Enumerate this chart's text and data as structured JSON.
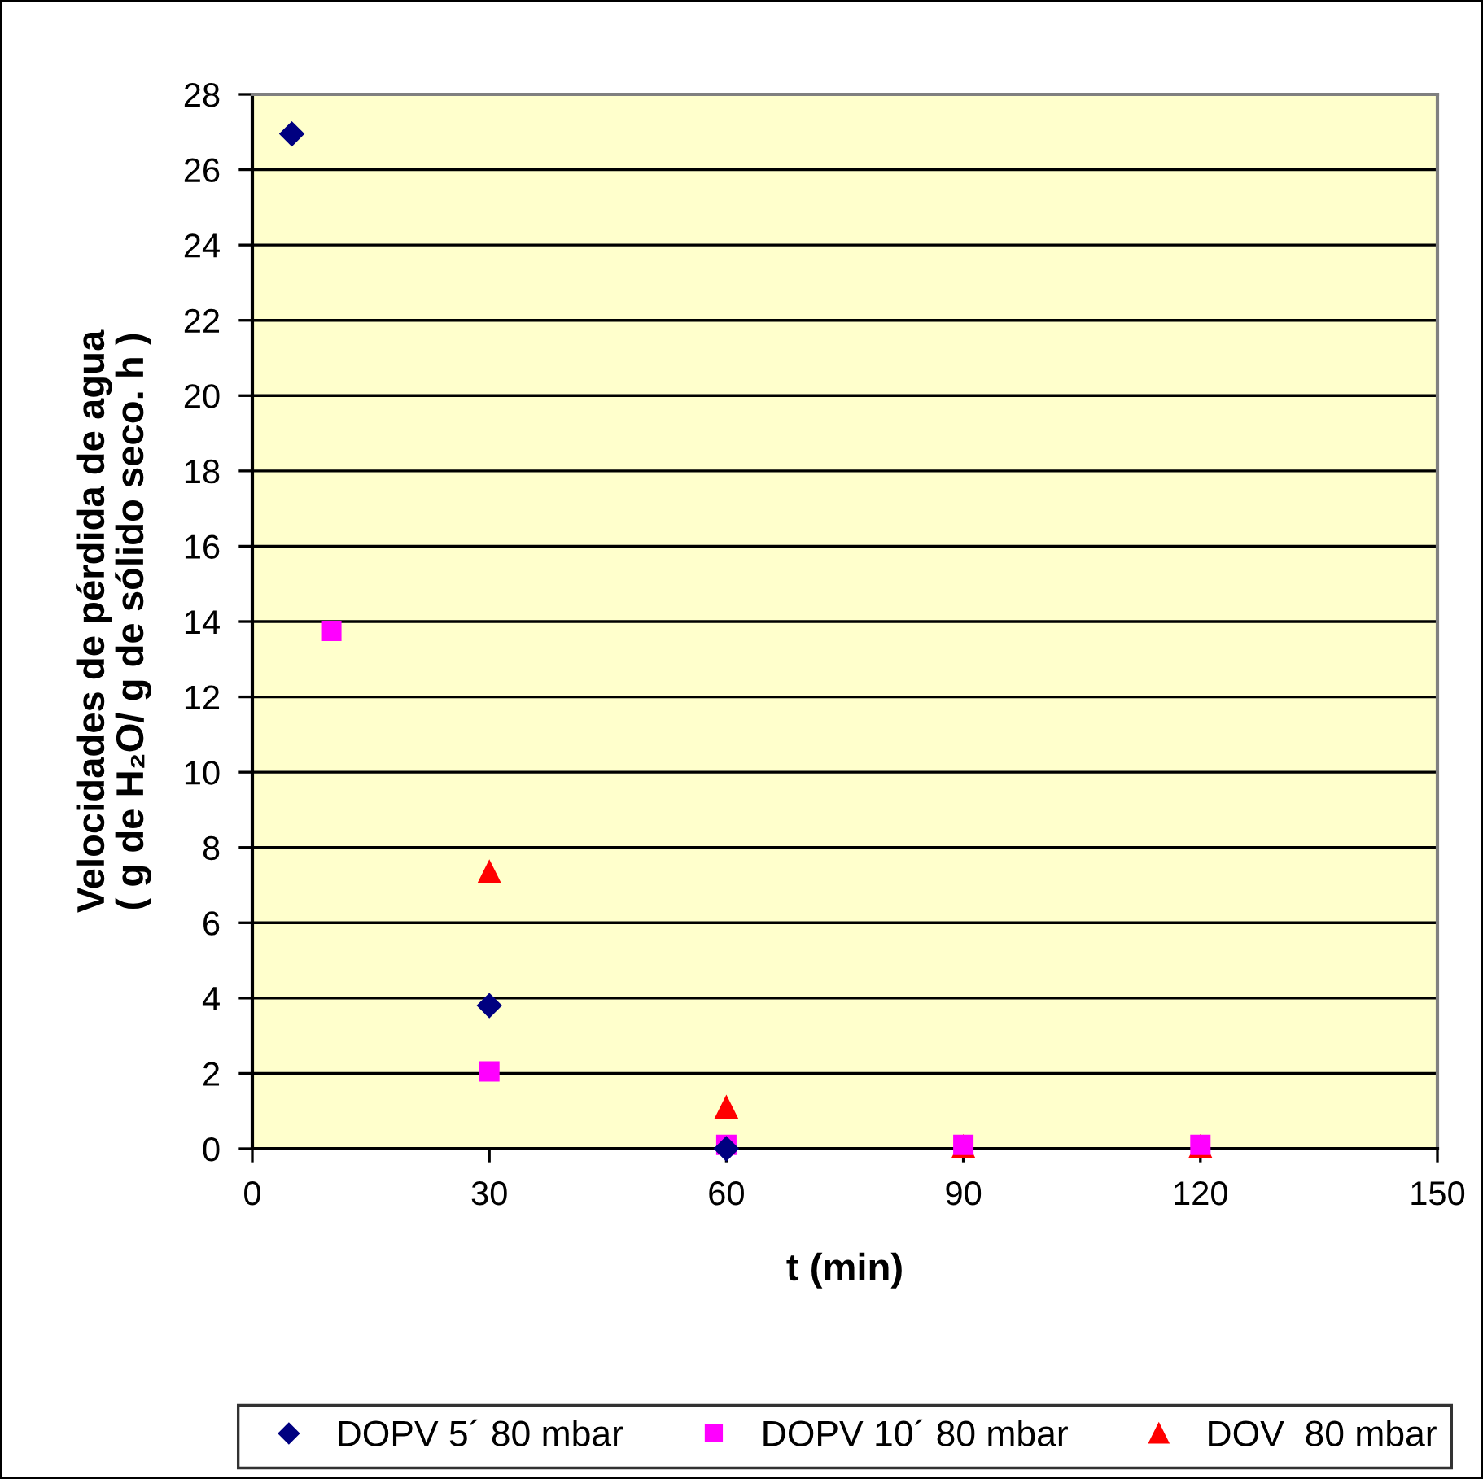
{
  "chart_data": {
    "type": "scatter",
    "xlabel": "t (min)",
    "ylabel": "Velocidades de pérdida de agua\n( g de H₂O/ g de sólido seco. h )",
    "xlim": [
      0,
      150
    ],
    "xticks": [
      0,
      30,
      60,
      90,
      120,
      150
    ],
    "ylim": [
      0,
      28
    ],
    "yticks": [
      0,
      2,
      4,
      6,
      8,
      10,
      12,
      14,
      16,
      18,
      20,
      22,
      24,
      26,
      28
    ],
    "grid": "y",
    "legend": "bottom",
    "series": [
      {
        "name": "DOPV 5´ 80 mbar",
        "color": "#000080",
        "marker": "diamond",
        "x": [
          5,
          30,
          60
        ],
        "values": [
          26.95,
          3.8,
          0.0
        ]
      },
      {
        "name": "DOPV 10´ 80 mbar",
        "color": "#ff00ff",
        "marker": "square",
        "x": [
          10,
          30,
          60,
          90,
          120
        ],
        "values": [
          13.75,
          2.05,
          0.1,
          0.1,
          0.1
        ]
      },
      {
        "name": "DOV  80 mbar",
        "color": "#ff0000",
        "marker": "triangle",
        "x": [
          30,
          60,
          90,
          120
        ],
        "values": [
          7.35,
          1.1,
          0.05,
          0.05
        ]
      }
    ]
  }
}
